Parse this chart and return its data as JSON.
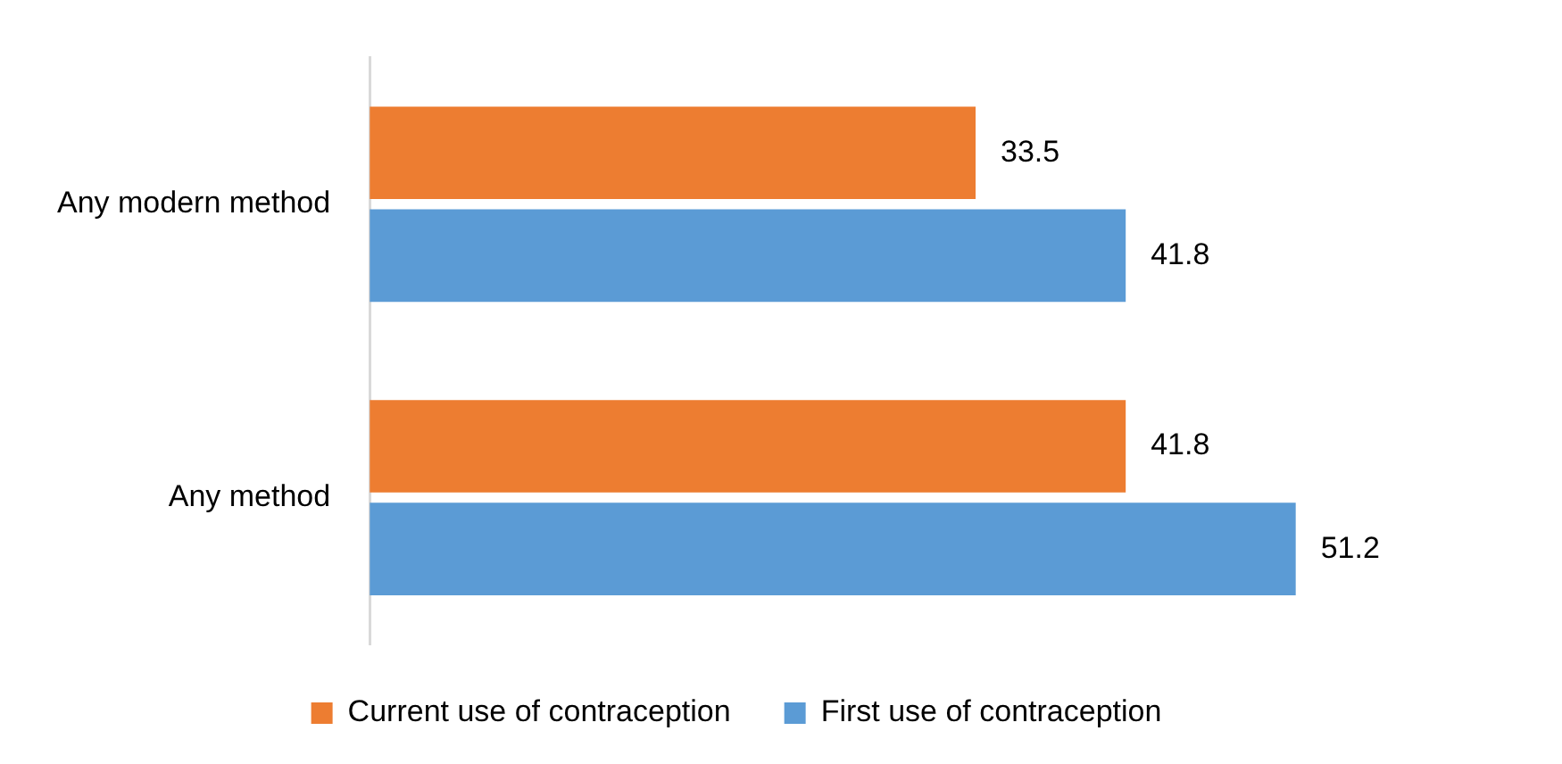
{
  "chart_data": {
    "type": "bar",
    "orientation": "horizontal",
    "categories": [
      "Any modern method",
      "Any method"
    ],
    "series": [
      {
        "name": "Current use of contraception",
        "color": "#ed7d31",
        "values": [
          33.5,
          41.8
        ]
      },
      {
        "name": "First use of contraception",
        "color": "#5b9bd5",
        "values": [
          41.8,
          51.2
        ]
      }
    ],
    "data_labels": true,
    "legend": "bottom"
  }
}
